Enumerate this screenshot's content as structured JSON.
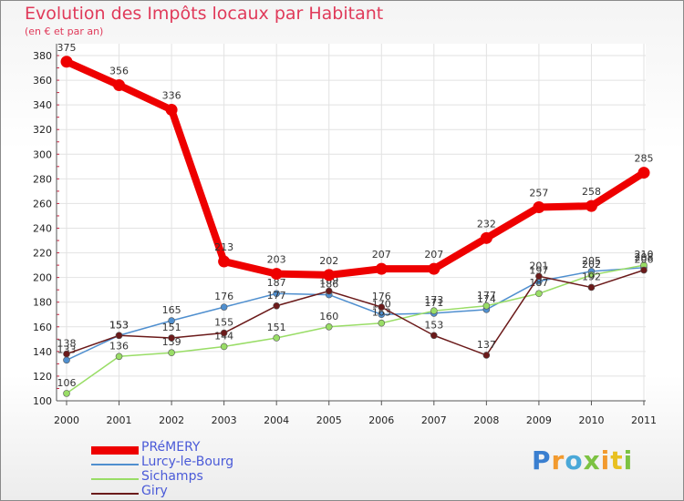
{
  "chart_data": {
    "type": "line",
    "title": "Evolution des Impôts locaux par Habitant",
    "subtitle": "(en € et par an)",
    "x": [
      "2000",
      "2001",
      "2002",
      "2003",
      "2004",
      "2005",
      "2006",
      "2007",
      "2008",
      "2009",
      "2010",
      "2011"
    ],
    "ylim": [
      100,
      380
    ],
    "yticks": [
      100,
      120,
      140,
      160,
      180,
      200,
      220,
      240,
      260,
      280,
      300,
      320,
      340,
      360,
      380
    ],
    "grid": true,
    "legend_position": "bottom-left",
    "series": [
      {
        "name": "PRéMERY",
        "color": "#ee0000",
        "values": [
          375,
          356,
          336,
          213,
          203,
          202,
          207,
          207,
          232,
          257,
          258,
          285
        ]
      },
      {
        "name": "Lurcy-le-Bourg",
        "color": "#4f8fcf",
        "values": [
          133,
          153,
          165,
          176,
          187,
          186,
          170,
          171,
          174,
          197,
          205,
          208
        ]
      },
      {
        "name": "Sichamps",
        "color": "#99dd66",
        "values": [
          106,
          136,
          139,
          144,
          151,
          160,
          163,
          173,
          177,
          187,
          202,
          210
        ]
      },
      {
        "name": "Giry",
        "color": "#6b1a1a",
        "values": [
          138,
          153,
          151,
          155,
          177,
          189,
          176,
          153,
          137,
          201,
          192,
          206
        ]
      }
    ]
  },
  "brand": {
    "logo_letters": [
      {
        "ch": "P",
        "color": "#3a7fd0"
      },
      {
        "ch": "r",
        "color": "#f29a2e"
      },
      {
        "ch": "o",
        "color": "#4aa8d8"
      },
      {
        "ch": "x",
        "color": "#7cc242"
      },
      {
        "ch": "i",
        "color": "#f29a2e"
      },
      {
        "ch": "t",
        "color": "#e8c020"
      },
      {
        "ch": "i",
        "color": "#7cc242"
      }
    ]
  }
}
